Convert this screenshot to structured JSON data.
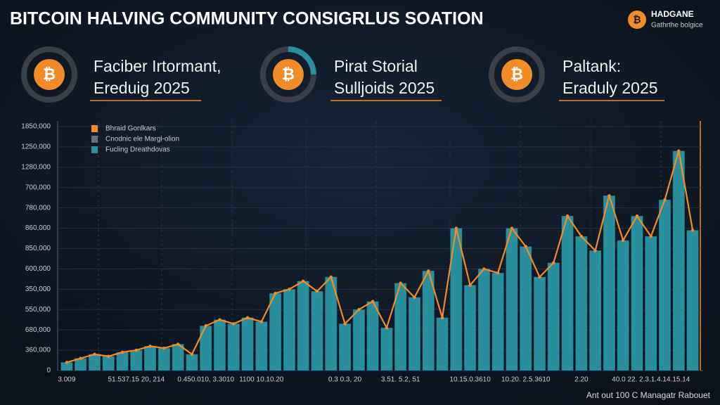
{
  "header": {
    "title": "BITCOIN HALVING COMMUNITY CONSIGRLUS SOATION",
    "brand": "HADGANE",
    "brand_sub": "Gathrthe bolgice"
  },
  "cards": [
    {
      "line1": "Faciber Irtormant,",
      "line2": "Ereduig 2025"
    },
    {
      "line1": "Pirat Storial",
      "line2": "Sulljoids 2025"
    },
    {
      "line1": "Paltank:",
      "line2": "Eradulу 2025"
    }
  ],
  "footer": "Ant out 100 C Managatr Rabouet",
  "chart_data": {
    "type": "bar",
    "legend": [
      {
        "label": "Bhraid Gonlkars",
        "color": "#f28c28"
      },
      {
        "label": "Cnodnic ele Margi-olion",
        "color": "#6b6f76"
      },
      {
        "label": "Fucling Dreathdovas",
        "color": "#2a8f9c"
      }
    ],
    "categories": [
      "3.009",
      null,
      null,
      null,
      null,
      "51.537.15 20, 214",
      null,
      null,
      null,
      null,
      "0.450.010, 3.3010",
      null,
      null,
      null,
      "1100 10.10.20",
      null,
      null,
      null,
      null,
      null,
      "0.3 0.3, 20",
      null,
      null,
      null,
      "3.51. 5.2, 51",
      null,
      null,
      null,
      null,
      "10.15.0.3610",
      null,
      null,
      null,
      "10.20. 2.5.3610",
      null,
      null,
      null,
      "2.20",
      null,
      null,
      null,
      null,
      "40.0 22. 2.3.1.4.14.15.14",
      null,
      null,
      null
    ],
    "values": [
      0.4,
      0.6,
      0.8,
      0.7,
      0.9,
      1.0,
      1.2,
      1.1,
      1.3,
      0.8,
      2.2,
      2.5,
      2.3,
      2.6,
      2.4,
      3.8,
      4.0,
      4.4,
      3.9,
      4.6,
      2.3,
      3.0,
      3.4,
      2.1,
      4.3,
      3.6,
      4.9,
      2.6,
      7.0,
      4.2,
      5.0,
      4.8,
      7.0,
      6.1,
      4.6,
      5.3,
      7.6,
      6.6,
      5.9,
      8.6,
      6.4,
      7.6,
      6.6,
      8.4,
      10.8,
      6.9
    ],
    "color": "#2a8f9c",
    "line_color": "#f28c28",
    "ylim": [
      0,
      12
    ],
    "yticks": [
      {
        "value": 0,
        "label": "0"
      },
      {
        "value": 1,
        "label": "360,000"
      },
      {
        "value": 2,
        "label": "680,000"
      },
      {
        "value": 3,
        "label": "550,000"
      },
      {
        "value": 4,
        "label": "350,000"
      },
      {
        "value": 5,
        "label": "600,000"
      },
      {
        "value": 6,
        "label": "850,000"
      },
      {
        "value": 7,
        "label": "860,000"
      },
      {
        "value": 8,
        "label": "780,000"
      },
      {
        "value": 9,
        "label": "700,000"
      },
      {
        "value": 10,
        "label": "1280,000"
      },
      {
        "value": 11,
        "label": "1250,000"
      },
      {
        "value": 12,
        "label": "1850,000"
      }
    ],
    "grid": true
  }
}
